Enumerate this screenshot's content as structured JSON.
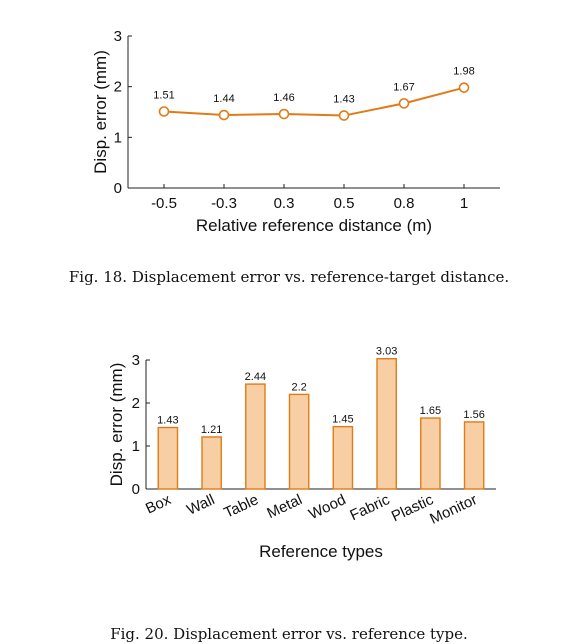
{
  "chart_data": [
    {
      "type": "line",
      "caption": "Fig. 18.  Displacement error vs. reference-target distance.",
      "xlabel": "Relative reference distance (m)",
      "ylabel": "Disp. error (mm)",
      "categories": [
        "-0.5",
        "-0.3",
        "0.3",
        "0.5",
        "0.8",
        "1"
      ],
      "values": [
        1.51,
        1.44,
        1.46,
        1.43,
        1.67,
        1.98
      ],
      "data_labels": [
        "1.51",
        "1.44",
        "1.46",
        "1.43",
        "1.67",
        "1.98"
      ],
      "ylim": [
        0,
        3
      ],
      "yticks": [
        "0",
        "1",
        "2",
        "3"
      ],
      "color": "#e07b16",
      "marker": "circle",
      "grid": false
    },
    {
      "type": "bar",
      "caption": "Fig. 20.  Displacement error vs. reference type.",
      "xlabel": "Reference types",
      "ylabel": "Disp. error (mm)",
      "categories": [
        "Box",
        "Wall",
        "Table",
        "Metal",
        "Wood",
        "Fabric",
        "Plastic",
        "Monitor"
      ],
      "values": [
        1.43,
        1.21,
        2.44,
        2.2,
        1.45,
        3.03,
        1.65,
        1.56
      ],
      "data_labels": [
        "1.43",
        "1.21",
        "2.44",
        "2.2",
        "1.45",
        "3.03",
        "1.65",
        "1.56"
      ],
      "ylim": [
        0,
        3
      ],
      "yticks": [
        "0",
        "1",
        "2",
        "3"
      ],
      "bar_fill": "#f8cfa4",
      "bar_edge": "#e07b16",
      "grid": false
    }
  ]
}
